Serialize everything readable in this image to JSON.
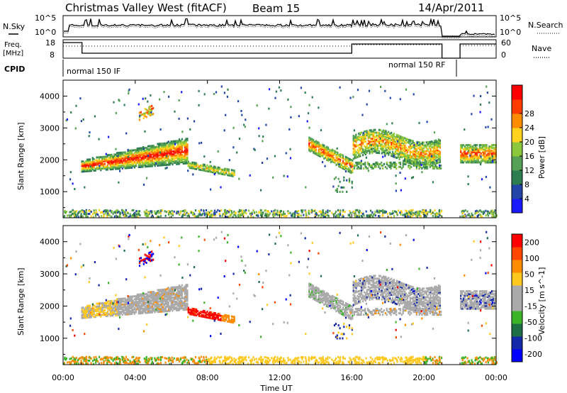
{
  "header": {
    "station": "Christmas Valley West (fitACF)",
    "beam": "Beam 15",
    "date": "14/Apr/2011"
  },
  "top_panels": {
    "nsky_label": "N.Sky",
    "nsearch_label": "N.Search",
    "freq_label_line1": "Freq.",
    "freq_label_line2": "[MHz]",
    "nave_label": "Nave",
    "cpid_label": "CPID",
    "noise_left_ticks": [
      "10^5",
      "10^0"
    ],
    "noise_right_ticks": [
      "10^5",
      "10^0"
    ],
    "freq_left_ticks": [
      "18",
      "8"
    ],
    "freq_right_ticks": [
      "60",
      "0"
    ],
    "cpid_segments": [
      {
        "label": "normal 150 IF",
        "start_h": 0,
        "end_h": 16
      },
      {
        "label": "normal 150 RF",
        "start_h": 16,
        "end_h": 21
      }
    ]
  },
  "colors": {
    "power_scale": [
      "#1a1aff",
      "#2345a8",
      "#2d7d50",
      "#55a055",
      "#8cc83c",
      "#ffd21e",
      "#ff8c00",
      "#ff3c00",
      "#ff0000"
    ],
    "velocity_scale": [
      "#0000ff",
      "#1428aa",
      "#1e6e46",
      "#3cb428",
      "#aaaaaa",
      "#aaaaaa",
      "#ffc81e",
      "#ff8c00",
      "#ff4600",
      "#ff0000"
    ]
  },
  "chart_data": [
    {
      "type": "heatmap",
      "panel": "power",
      "xlabel": "Time UT",
      "ylabel": "Slant Range [km]",
      "x_ticks": [
        "00:00",
        "04:00",
        "08:00",
        "12:00",
        "16:00",
        "20:00",
        "00:00"
      ],
      "xlim_hours": [
        0,
        24
      ],
      "y_ticks": [
        "1000",
        "2000",
        "3000",
        "4000"
      ],
      "ylim_km": [
        180,
        4500
      ],
      "colorbar_label": "Power [dB]",
      "colorbar_ticks": [
        "4",
        "8",
        "12",
        "16",
        "20",
        "24",
        "28"
      ],
      "colorbar_range": [
        0,
        30
      ]
    },
    {
      "type": "heatmap",
      "panel": "velocity",
      "xlabel": "Time UT",
      "ylabel": "Slant Range [km]",
      "x_ticks": [
        "00:00",
        "04:00",
        "08:00",
        "12:00",
        "16:00",
        "20:00",
        "00:00"
      ],
      "xlim_hours": [
        0,
        24
      ],
      "y_ticks": [
        "1000",
        "2000",
        "3000",
        "4000"
      ],
      "ylim_km": [
        180,
        4500
      ],
      "colorbar_label": "Velocity [m s^-1]",
      "colorbar_ticks": [
        "200",
        "100",
        "50",
        "15",
        "-15",
        "-50",
        "-100",
        "-200"
      ]
    }
  ]
}
